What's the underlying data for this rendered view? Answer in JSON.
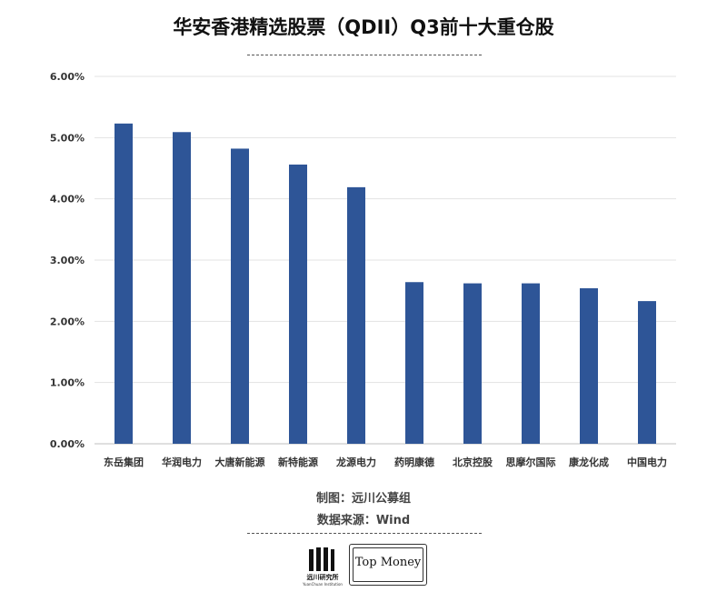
{
  "title": "华安香港精选股票（QDII）Q3前十大重仓股",
  "chart_data": {
    "type": "bar",
    "title": "华安香港精选股票（QDII）Q3前十大重仓股",
    "categories": [
      "东岳集团",
      "华润电力",
      "大唐新能源",
      "新特能源",
      "龙源电力",
      "药明康德",
      "北京控股",
      "思摩尔国际",
      "康龙化成",
      "中国电力"
    ],
    "values": [
      5.23,
      5.09,
      4.82,
      4.56,
      4.19,
      2.64,
      2.62,
      2.62,
      2.54,
      2.33
    ],
    "ylim": [
      0,
      6
    ],
    "yticks": [
      "0.00%",
      "1.00%",
      "2.00%",
      "3.00%",
      "4.00%",
      "5.00%",
      "6.00%"
    ],
    "xlabel": "",
    "ylabel": "",
    "grid": true,
    "legend": "none",
    "bar_color": "#2E5597"
  },
  "credits": {
    "made_by": "制图：远川公募组",
    "source": "数据来源：Wind"
  },
  "logos": {
    "left_cn": "远川研究所",
    "left_en": "YuanChuan Institution",
    "right": "Top Money"
  }
}
